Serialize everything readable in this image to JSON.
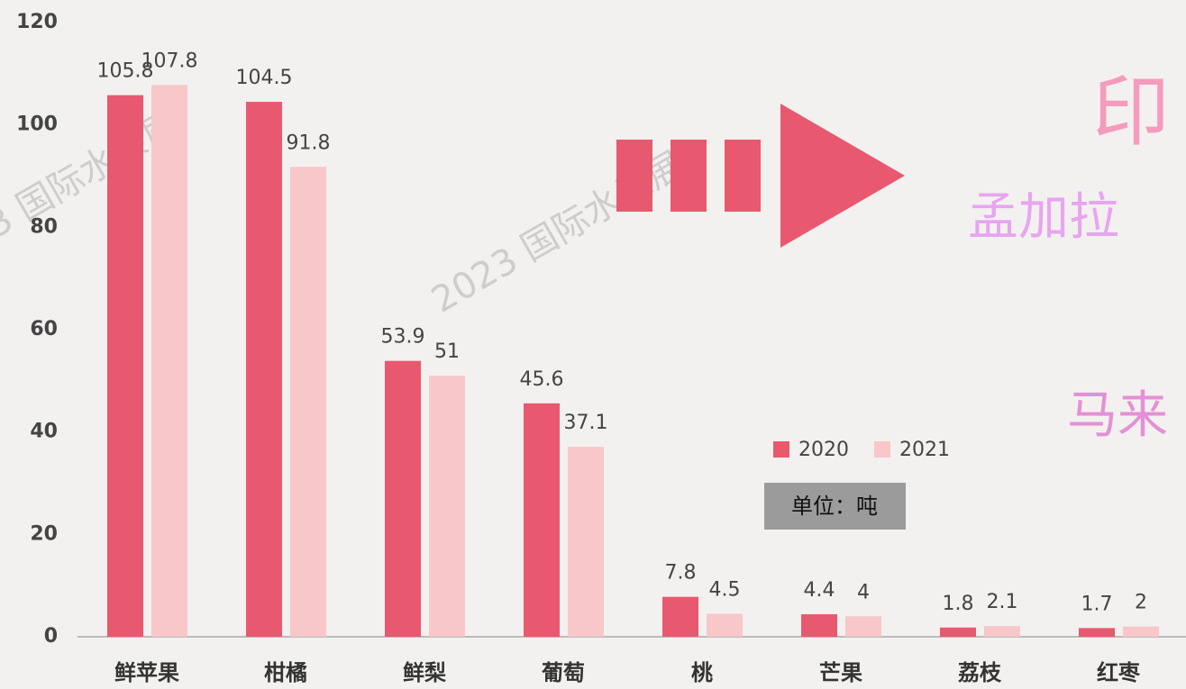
{
  "chart_data": {
    "type": "bar",
    "categories": [
      "鲜苹果",
      "柑橘",
      "鲜梨",
      "葡萄",
      "桃",
      "芒果",
      "荔枝",
      "红枣"
    ],
    "series": [
      {
        "name": "2020",
        "color": "#e8596f",
        "values": [
          105.8,
          104.5,
          53.9,
          45.6,
          7.8,
          4.4,
          1.8,
          1.7
        ]
      },
      {
        "name": "2021",
        "color": "#f8c7c9",
        "values": [
          107.8,
          91.8,
          51,
          37.1,
          4.5,
          4,
          2.1,
          2
        ]
      }
    ],
    "ylim": [
      0,
      120
    ],
    "yticks": [
      0,
      20,
      40,
      60,
      80,
      100,
      120
    ],
    "grid": false,
    "legend": "center",
    "annotations": [
      "单位：吨"
    ],
    "watermark": "2023 国际水果展",
    "side_texts": [
      "印",
      "孟加拉",
      "马来"
    ]
  }
}
